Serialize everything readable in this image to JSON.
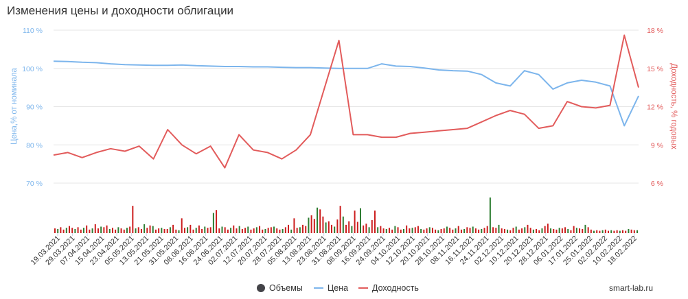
{
  "title": "Изменения цены и доходности облигации",
  "credit": "smart-lab.ru",
  "legend": [
    {
      "label": "Объемы",
      "color": "#434348",
      "symbol": "circle"
    },
    {
      "label": "Цена",
      "color": "#7cb5ec",
      "symbol": "line"
    },
    {
      "label": "Доходность",
      "color": "#e25b5b",
      "symbol": "line"
    }
  ],
  "chart_data": {
    "type": "line",
    "title": "Изменения цены и доходности облигации",
    "grid": true,
    "legend_position": "bottom-center",
    "x_tick_labels": [
      "19.03.2021",
      "29.03.2021",
      "07.04.2021",
      "15.04.2021",
      "23.04.2021",
      "05.05.2021",
      "13.05.2021",
      "21.05.2021",
      "31.05.2021",
      "08.06.2021",
      "16.06.2021",
      "24.06.2021",
      "02.07.2021",
      "12.07.2021",
      "20.07.2021",
      "28.07.2021",
      "05.08.2021",
      "13.08.2021",
      "23.08.2021",
      "31.08.2021",
      "08.09.2021",
      "16.09.2021",
      "24.09.2021",
      "04.10.2021",
      "12.10.2021",
      "20.10.2021",
      "28.10.2021",
      "08.11.2021",
      "16.11.2021",
      "24.11.2021",
      "02.12.2021",
      "10.12.2021",
      "20.12.2021",
      "28.12.2021",
      "06.01.2022",
      "17.01.2022",
      "25.01.2022",
      "02.02.2022",
      "10.02.2022",
      "18.02.2022"
    ],
    "y_left": {
      "label": "Цена,% от номинала",
      "ticks": [
        "70 %",
        "80 %",
        "90 %",
        "100 %",
        "110 %"
      ],
      "range": [
        70,
        110
      ]
    },
    "y_right": {
      "label": "Доходность, % годовых",
      "ticks": [
        "6 %",
        "9 %",
        "12 %",
        "15 %",
        "18 %"
      ],
      "range": [
        6,
        18
      ]
    },
    "series": [
      {
        "name": "Цена",
        "axis": "left",
        "color": "#7cb5ec",
        "values": [
          101.9,
          101.8,
          101.6,
          101.5,
          101.2,
          101.0,
          100.9,
          100.8,
          100.8,
          100.9,
          100.7,
          100.6,
          100.5,
          100.5,
          100.4,
          100.4,
          100.3,
          100.2,
          100.2,
          100.1,
          100.0,
          100.0,
          100.0,
          101.2,
          100.6,
          100.5,
          100.1,
          99.6,
          99.4,
          99.3,
          98.4,
          96.2,
          95.4,
          99.4,
          98.4,
          94.6,
          96.2,
          96.9,
          96.4,
          95.4,
          85.0,
          92.8
        ]
      },
      {
        "name": "Доходность",
        "axis": "right",
        "color": "#e25b5b",
        "values": [
          8.2,
          8.4,
          8.0,
          8.4,
          8.7,
          8.5,
          8.9,
          7.9,
          10.2,
          9.0,
          8.3,
          8.9,
          7.2,
          9.8,
          8.6,
          8.4,
          7.9,
          8.6,
          9.8,
          13.5,
          17.2,
          9.8,
          9.8,
          9.6,
          9.6,
          9.9,
          10.0,
          10.1,
          10.2,
          10.3,
          10.8,
          11.3,
          11.7,
          11.4,
          10.3,
          10.5,
          12.4,
          12.0,
          11.9,
          12.1,
          17.6,
          13.5
        ]
      },
      {
        "name": "Объемы",
        "axis": "volume",
        "color": "#434348",
        "values": [
          8,
          7,
          10,
          6,
          9,
          12,
          9,
          7,
          10,
          6,
          9,
          13,
          6,
          8,
          15,
          8,
          11,
          10,
          13,
          7,
          9,
          6,
          10,
          8,
          6,
          9,
          11,
          46,
          8,
          10,
          7,
          15,
          9,
          13,
          12,
          6,
          8,
          9,
          7,
          7,
          10,
          14,
          6,
          5,
          25,
          9,
          10,
          14,
          6,
          9,
          13,
          7,
          11,
          9,
          10,
          34,
          39,
          8,
          11,
          10,
          6,
          9,
          13,
          8,
          12,
          7,
          9,
          11,
          6,
          8,
          10,
          12,
          6,
          7,
          9,
          10,
          11,
          8,
          6,
          7,
          10,
          14,
          6,
          25,
          9,
          10,
          14,
          12,
          26,
          30,
          24,
          43,
          40,
          28,
          18,
          20,
          14,
          11,
          23,
          46,
          28,
          14,
          20,
          12,
          38,
          19,
          42,
          13,
          16,
          10,
          22,
          38,
          10,
          12,
          8,
          7,
          9,
          6,
          12,
          10,
          6,
          7,
          13,
          8,
          9,
          10,
          12,
          7,
          6,
          8,
          10,
          9,
          6,
          5,
          7,
          8,
          11,
          9,
          6,
          8,
          12,
          6,
          7,
          10,
          9,
          11,
          8,
          6,
          7,
          9,
          12,
          60,
          10,
          9,
          14,
          8,
          7,
          6,
          5,
          9,
          11,
          6,
          8,
          10,
          14,
          9,
          6,
          7,
          5,
          8,
          12,
          16,
          8,
          7,
          6,
          9,
          8,
          10,
          7,
          5,
          12,
          9,
          8,
          7,
          14,
          10,
          6,
          4,
          5,
          4,
          5,
          6,
          4,
          5,
          4,
          5,
          4,
          5,
          4,
          7,
          6,
          5,
          5
        ]
      }
    ]
  }
}
